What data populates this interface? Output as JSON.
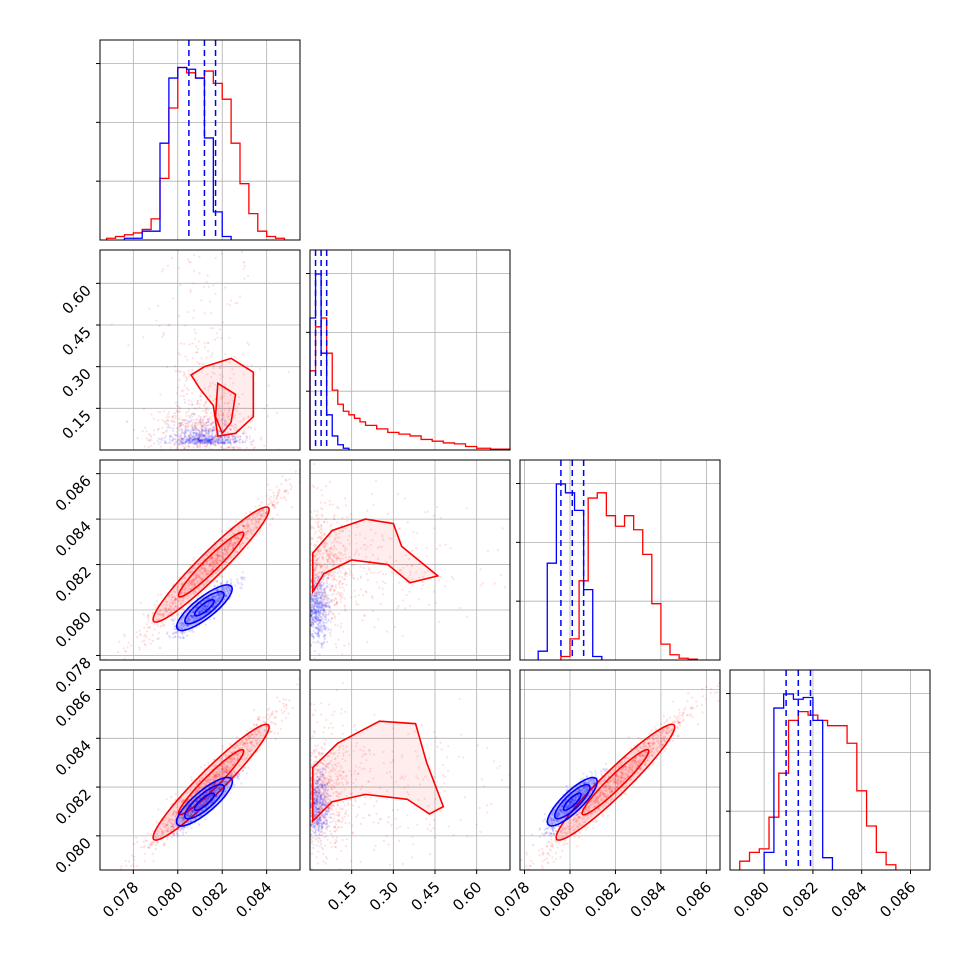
{
  "colors": {
    "series_a": "#0000ff",
    "series_b": "#ff0000",
    "grid": "#b0b0b0"
  },
  "chart_data": {
    "type": "corner",
    "grid": true,
    "parameters": [
      {
        "range": [
          0.0765,
          0.0855
        ],
        "ticks": [
          "0.078",
          "0.080",
          "0.082",
          "0.084"
        ]
      },
      {
        "range": [
          0.0,
          0.72
        ],
        "ticks": [
          "0.15",
          "0.30",
          "0.45",
          "0.60"
        ]
      },
      {
        "range": [
          0.0778,
          0.0866
        ],
        "ticks": [
          "0.078",
          "0.080",
          "0.082",
          "0.084",
          "0.086"
        ]
      },
      {
        "range": [
          0.0786,
          0.0868
        ],
        "ticks": [
          "0.080",
          "0.082",
          "0.084",
          "0.086"
        ]
      }
    ],
    "series": [
      {
        "color": "series_a",
        "histograms": [
          {
            "edges": [
              0.0776,
              0.0784,
              0.0792,
              0.0796,
              0.08,
              0.0804,
              0.0808,
              0.0812,
              0.0816,
              0.082,
              0.0824
            ],
            "counts": [
              0.01,
              0.05,
              0.55,
              0.92,
              0.98,
              0.97,
              0.92,
              0.58,
              0.16,
              0.02
            ]
          },
          {
            "edges": [
              0.0,
              0.02,
              0.04,
              0.06,
              0.08,
              0.1,
              0.12,
              0.14
            ],
            "counts": [
              0.75,
              1.0,
              0.55,
              0.2,
              0.08,
              0.03,
              0.01
            ]
          },
          {
            "edges": [
              0.0786,
              0.079,
              0.0794,
              0.0798,
              0.0802,
              0.0806,
              0.081,
              0.0814
            ],
            "counts": [
              0.05,
              0.55,
              1.0,
              0.95,
              0.85,
              0.4,
              0.02
            ]
          },
          {
            "edges": [
              0.08,
              0.0804,
              0.0808,
              0.0812,
              0.0816,
              0.082,
              0.0824,
              0.0828
            ],
            "counts": [
              0.1,
              0.92,
              1.0,
              0.97,
              0.98,
              0.85,
              0.07
            ]
          }
        ],
        "quantiles": [
          [
            0.0805,
            0.0812,
            0.0817
          ],
          [
            0.02,
            0.04,
            0.06
          ],
          [
            0.0796,
            0.0801,
            0.0806
          ],
          [
            0.0809,
            0.0814,
            0.0819
          ]
        ]
      },
      {
        "color": "series_b",
        "histograms": [
          {
            "edges": [
              0.0768,
              0.0772,
              0.0776,
              0.078,
              0.0784,
              0.0788,
              0.0792,
              0.0796,
              0.08,
              0.0804,
              0.0808,
              0.0812,
              0.0816,
              0.082,
              0.0824,
              0.0828,
              0.0832,
              0.0836,
              0.084,
              0.0844,
              0.0848
            ],
            "counts": [
              0.01,
              0.02,
              0.03,
              0.04,
              0.06,
              0.12,
              0.35,
              0.75,
              0.98,
              0.95,
              0.92,
              0.96,
              0.89,
              0.8,
              0.55,
              0.32,
              0.15,
              0.05,
              0.02,
              0.01
            ]
          },
          {
            "edges": [
              0.0,
              0.02,
              0.04,
              0.06,
              0.08,
              0.1,
              0.12,
              0.14,
              0.16,
              0.18,
              0.2,
              0.24,
              0.28,
              0.32,
              0.36,
              0.4,
              0.44,
              0.48,
              0.52,
              0.56,
              0.6,
              0.65,
              0.72
            ],
            "counts": [
              0.45,
              0.7,
              0.75,
              0.55,
              0.34,
              0.26,
              0.22,
              0.2,
              0.18,
              0.16,
              0.14,
              0.12,
              0.1,
              0.09,
              0.08,
              0.06,
              0.05,
              0.04,
              0.035,
              0.02,
              0.01,
              0.005
            ]
          },
          {
            "edges": [
              0.0796,
              0.08,
              0.0804,
              0.0808,
              0.0812,
              0.0816,
              0.082,
              0.0824,
              0.0828,
              0.0832,
              0.0836,
              0.084,
              0.0844,
              0.0848,
              0.0852,
              0.0856
            ],
            "counts": [
              0.02,
              0.12,
              0.45,
              0.92,
              0.95,
              0.82,
              0.76,
              0.82,
              0.74,
              0.6,
              0.32,
              0.09,
              0.03,
              0.01,
              0.005
            ]
          },
          {
            "edges": [
              0.079,
              0.0794,
              0.0798,
              0.0802,
              0.0806,
              0.081,
              0.0814,
              0.0818,
              0.0822,
              0.0826,
              0.083,
              0.0834,
              0.0838,
              0.0842,
              0.0846,
              0.085,
              0.0854
            ],
            "counts": [
              0.05,
              0.1,
              0.12,
              0.3,
              0.55,
              0.85,
              0.9,
              0.88,
              0.85,
              0.82,
              0.82,
              0.72,
              0.45,
              0.25,
              0.1,
              0.03
            ]
          }
        ],
        "quantiles": []
      }
    ]
  }
}
